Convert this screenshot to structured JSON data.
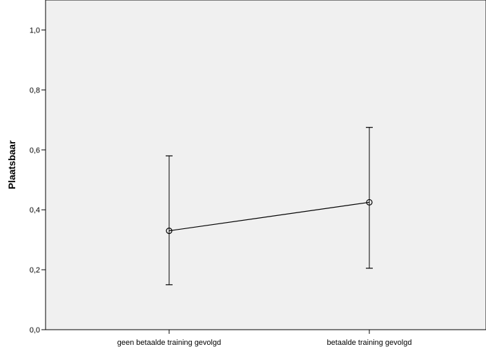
{
  "chart_data": {
    "type": "line",
    "title": "",
    "xlabel": "",
    "ylabel": "Plaatsbaar",
    "categories": [
      "geen betaalde training gevolgd",
      "betaalde training gevolgd"
    ],
    "series": [
      {
        "values": [
          0.33,
          0.425
        ],
        "error_low": [
          0.15,
          0.205
        ],
        "error_high": [
          0.58,
          0.675
        ]
      }
    ],
    "ylim": [
      0.0,
      1.1
    ],
    "yticks": [
      0.0,
      0.2,
      0.4,
      0.6,
      0.8,
      1.0
    ],
    "ytick_labels": [
      "0,0",
      "0,2",
      "0,4",
      "0,6",
      "0,8",
      "1,0"
    ],
    "grid": false,
    "legend": "none",
    "colors": {
      "plot_background": "#f0f0f0",
      "line": "#000000",
      "marker": "#000000"
    }
  }
}
